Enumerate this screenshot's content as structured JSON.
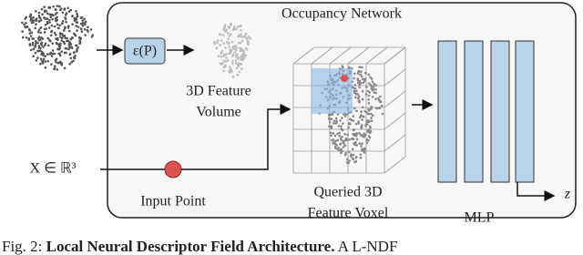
{
  "diagram": {
    "title": "Occupancy Network",
    "encoder": "ε(P)",
    "feature_volume": [
      "3D Feature",
      "Volume"
    ],
    "input_label": "X ∈ ℝ³",
    "input_point": "Input Point",
    "queried_voxel": [
      "Queried 3D",
      "Feature Voxel"
    ],
    "mlp": "MLP",
    "output": "z"
  },
  "caption": {
    "prefix": "Fig. 2: ",
    "bold": "Local Neural Descriptor Field Architecture.",
    "text": " A L-NDF"
  }
}
